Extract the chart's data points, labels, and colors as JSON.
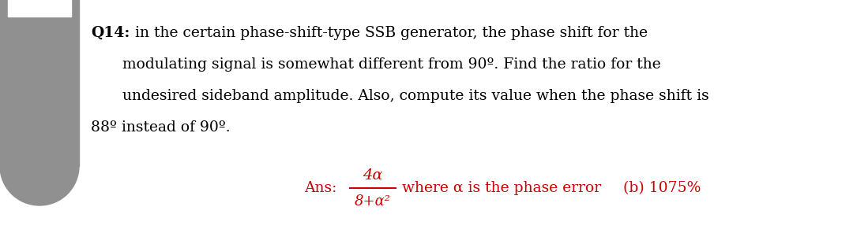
{
  "bg_color": "#ffffff",
  "left_bar_color": "#909090",
  "text_color": "#000000",
  "ans_color": "#cc0000",
  "title_prefix": "Q14:",
  "line1_rest": " in the certain phase-shift-type SSB generator, the phase shift for the",
  "line2": "modulating signal is somewhat different from 90º. Find the ratio for the",
  "line3": "undesired sideband amplitude. Also, compute its value when the phase shift is",
  "line4": "88º instead of 90º.",
  "ans_label": "Ans:",
  "ans_numerator": "4α",
  "ans_denominator": "8+α²",
  "ans_suffix": "where α is the phase error",
  "ans_part_b": "(b) 1075%",
  "fig_width": 10.8,
  "fig_height": 2.91,
  "dpi": 100
}
